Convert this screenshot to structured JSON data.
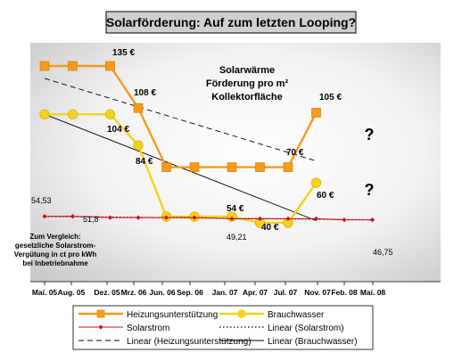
{
  "chart_data": {
    "type": "line",
    "title": "Solarförderung: Auf zum letzten Looping?",
    "x_ticks": [
      "Mai. 05",
      "Aug. 05",
      "Dez. 05",
      "Mrz. 06",
      "Jun. 06",
      "Sep. 06",
      "Jan. 07",
      "Apr. 07",
      "Jul. 07",
      "Nov. 07",
      "Feb. 08",
      "Mai. 08"
    ],
    "annotation_top": [
      "Solarwärme",
      "Förderung pro m²",
      "Kollektorfläche"
    ],
    "annotation_side": [
      "Zum Vergleich:",
      "gesetzliche Solarstrom-",
      "Vergütung in ct pro kWh",
      "bei Inbetriebnahme"
    ],
    "question_marks": [
      "?",
      "?"
    ],
    "series": [
      {
        "name": "Heizungsunterstützung",
        "color": "#f59a1b",
        "marker": "square",
        "points": [
          {
            "x": "2005-05",
            "y": 135
          },
          {
            "x": "2005-08",
            "y": 135
          },
          {
            "x": "2005-12",
            "y": 135
          },
          {
            "x": "2006-03",
            "y": 108
          },
          {
            "x": "2006-06",
            "y": 70
          },
          {
            "x": "2006-09",
            "y": 70
          },
          {
            "x": "2007-01",
            "y": 70
          },
          {
            "x": "2007-04",
            "y": 70
          },
          {
            "x": "2007-07",
            "y": 70
          },
          {
            "x": "2007-10",
            "y": 105
          }
        ]
      },
      {
        "name": "Brauchwasser",
        "color": "#f5d21b",
        "marker": "circle",
        "points": [
          {
            "x": "2005-05",
            "y": 104
          },
          {
            "x": "2005-08",
            "y": 104
          },
          {
            "x": "2005-12",
            "y": 104
          },
          {
            "x": "2006-03",
            "y": 84
          },
          {
            "x": "2006-06",
            "y": 54
          },
          {
            "x": "2006-09",
            "y": 54
          },
          {
            "x": "2007-01",
            "y": 54
          },
          {
            "x": "2007-04",
            "y": 40
          },
          {
            "x": "2007-07",
            "y": 40
          },
          {
            "x": "2007-10",
            "y": 60
          }
        ]
      },
      {
        "name": "Solarstrom",
        "color": "#cc1111",
        "marker": "diamond",
        "points": [
          {
            "x": "2005-05",
            "y": 54.53
          },
          {
            "x": "2005-08",
            "y": 54.53
          },
          {
            "x": "2005-12",
            "y": 51.8
          },
          {
            "x": "2006-03",
            "y": 51.8
          },
          {
            "x": "2006-06",
            "y": 51.8
          },
          {
            "x": "2006-09",
            "y": 51.8
          },
          {
            "x": "2007-01",
            "y": 49.21
          },
          {
            "x": "2007-04",
            "y": 49.21
          },
          {
            "x": "2007-07",
            "y": 49.21
          },
          {
            "x": "2007-10",
            "y": 49.21
          },
          {
            "x": "2008-01",
            "y": 46.75
          },
          {
            "x": "2008-04",
            "y": 46.75
          }
        ]
      }
    ],
    "data_labels": [
      {
        "series": "Heizungsunterstützung",
        "text": "135 €"
      },
      {
        "series": "Heizungsunterstützung",
        "text": "108 €"
      },
      {
        "series": "Heizungsunterstützung",
        "text": "70 €"
      },
      {
        "series": "Heizungsunterstützung",
        "text": "105 €"
      },
      {
        "series": "Brauchwasser",
        "text": "104 €"
      },
      {
        "series": "Brauchwasser",
        "text": "84 €"
      },
      {
        "series": "Brauchwasser",
        "text": "54 €"
      },
      {
        "series": "Brauchwasser",
        "text": "40 €"
      },
      {
        "series": "Brauchwasser",
        "text": "60 €"
      },
      {
        "series": "Solarstrom",
        "text": "54,53"
      },
      {
        "series": "Solarstrom",
        "text": "51,8"
      },
      {
        "series": "Solarstrom",
        "text": "49,21"
      },
      {
        "series": "Solarstrom",
        "text": "46,75"
      }
    ],
    "legend": {
      "placement": "bottom",
      "entries": [
        {
          "label": "Heizungsunterstützung",
          "style": "orange-square-line"
        },
        {
          "label": "Brauchwasser",
          "style": "yellow-circle-line"
        },
        {
          "label": "Solarstrom",
          "style": "red-diamond-line"
        },
        {
          "label": "Linear (Solarstrom)",
          "style": "dotted"
        },
        {
          "label": "Linear (Heizungsunterstützung)",
          "style": "dashed"
        },
        {
          "label": "Linear (Brauchwasser)",
          "style": "solid-black"
        }
      ]
    },
    "trendlines": [
      {
        "name": "Linear (Heizungsunterstützung)",
        "style": "dashed",
        "from": {
          "x": "2005-05",
          "y": 127
        },
        "to": {
          "x": "2007-10",
          "y": 74
        }
      },
      {
        "name": "Linear (Brauchwasser)",
        "style": "solid",
        "from": {
          "x": "2005-05",
          "y": 104
        },
        "to": {
          "x": "2007-10",
          "y": 45
        }
      },
      {
        "name": "Linear (Solarstrom)",
        "style": "dotted",
        "from": {
          "x": "2005-05",
          "y": 54.53
        },
        "to": {
          "x": "2008-04",
          "y": 46.75
        }
      }
    ],
    "grid": false
  }
}
